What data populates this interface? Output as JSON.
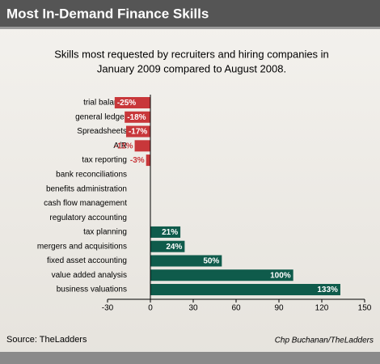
{
  "chart_data": {
    "type": "hbar",
    "title": "Most In-Demand Finance Skills",
    "subtitle": [
      "Skills most requested by recruiters and hiring companies in",
      "January 2009 compared to August 2008."
    ],
    "categories": [
      "trial balance",
      "general ledger",
      "Spreadsheets",
      "A/R",
      "tax reporting",
      "bank reconciliations",
      "benefits administration",
      "cash flow management",
      "regulatory accounting",
      "tax planning",
      "mergers and acquisitions",
      "fixed asset accounting",
      "value added analysis",
      "business valuations"
    ],
    "values": [
      -25,
      -18,
      -17,
      -11,
      -3,
      0,
      0,
      0,
      0,
      21,
      24,
      50,
      100,
      133
    ],
    "value_labels": [
      "-25%",
      "-18%",
      "-17%",
      "-11%",
      "-3%",
      null,
      null,
      null,
      null,
      "21%",
      "24%",
      "50%",
      "100%",
      "133%"
    ],
    "negative_color": "#c8373a",
    "positive_color": "#0f5b4b",
    "xlim": [
      -30,
      150
    ],
    "xticks": [
      -30,
      0,
      30,
      60,
      90,
      120,
      150
    ],
    "source": "Source: TheLadders",
    "credit": "Chp Buchanan/TheLadders"
  }
}
